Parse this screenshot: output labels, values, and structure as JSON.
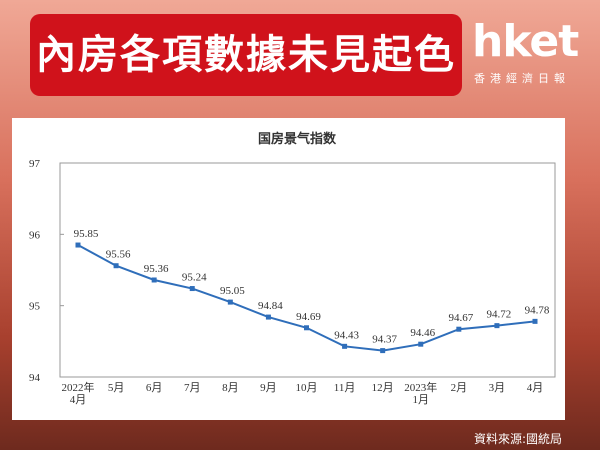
{
  "header": {
    "headline": "內房各項數據未見起色",
    "brand": "hket",
    "brand_subtitle": "香港經濟日報"
  },
  "source": "資料來源:國統局",
  "chart_data": {
    "type": "line",
    "title": "国房景气指数",
    "categories": [
      "2022年\n4月",
      "5月",
      "6月",
      "7月",
      "8月",
      "9月",
      "10月",
      "11月",
      "12月",
      "2023年\n1月",
      "2月",
      "3月",
      "4月"
    ],
    "series": [
      {
        "name": "国房景气指数",
        "color": "#2f6eba",
        "values": [
          95.85,
          95.56,
          95.36,
          95.24,
          95.05,
          94.84,
          94.69,
          94.43,
          94.37,
          94.46,
          94.67,
          94.72,
          94.78
        ]
      }
    ],
    "ylim": [
      94,
      97
    ],
    "yticks": [
      94,
      95,
      96,
      97
    ],
    "grid": false,
    "legend": false
  }
}
